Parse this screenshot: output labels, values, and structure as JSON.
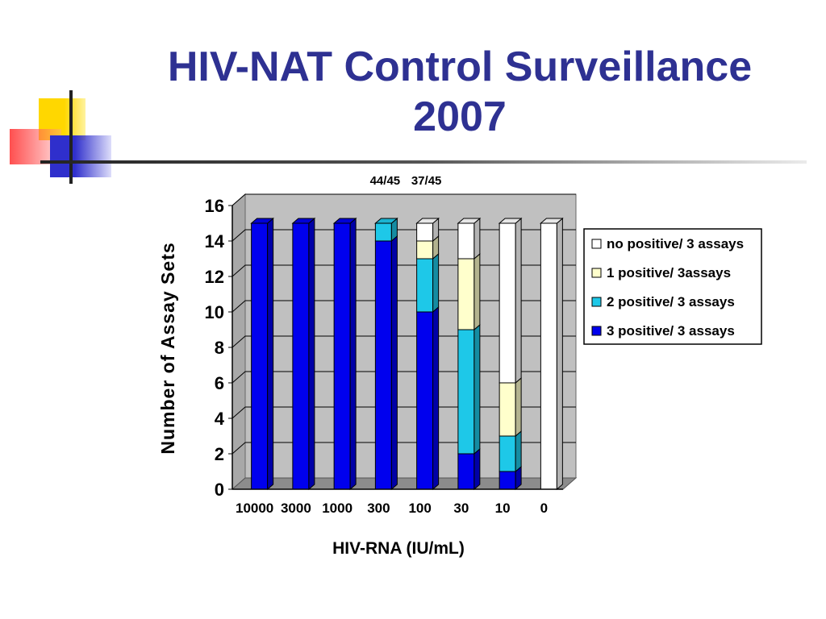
{
  "slide": {
    "title_line1": "HIV-NAT Control Surveillance",
    "title_line2": "2007"
  },
  "colors": {
    "title": "#2e3192",
    "series": [
      "#0000ee",
      "#1ec8e8",
      "#ffffcc",
      "#ffffff"
    ],
    "plot_background": "#c0c0c0",
    "deco_yellow": "#ffd700",
    "deco_red": "#ff3b3b",
    "deco_blue": "#3333cc"
  },
  "chart_data": {
    "type": "bar",
    "stacked": true,
    "three_d": true,
    "categories": [
      "10000",
      "3000",
      "1000",
      "300",
      "100",
      "30",
      "10",
      "0"
    ],
    "series": [
      {
        "name": "3 positive/ 3 assays",
        "values": [
          15,
          15,
          15,
          14,
          10,
          2,
          1,
          0
        ]
      },
      {
        "name": "2 positive/ 3 assays",
        "values": [
          0,
          0,
          0,
          1,
          3,
          7,
          2,
          0
        ]
      },
      {
        "name": "1 positive/ 3assays",
        "values": [
          0,
          0,
          0,
          0,
          1,
          4,
          3,
          0
        ]
      },
      {
        "name": "no positive/ 3 assays",
        "values": [
          0,
          0,
          0,
          0,
          1,
          2,
          9,
          15
        ]
      }
    ],
    "xlabel": "HIV-RNA (IU/mL)",
    "ylabel": "Number of Assay Sets",
    "ylim": [
      0,
      16
    ],
    "yticks": [
      0,
      2,
      4,
      6,
      8,
      10,
      12,
      14,
      16
    ],
    "grid": true,
    "legend_position": "right",
    "annotations": [
      {
        "text": "44/45",
        "category": "300"
      },
      {
        "text": "37/45",
        "category": "100"
      }
    ]
  }
}
